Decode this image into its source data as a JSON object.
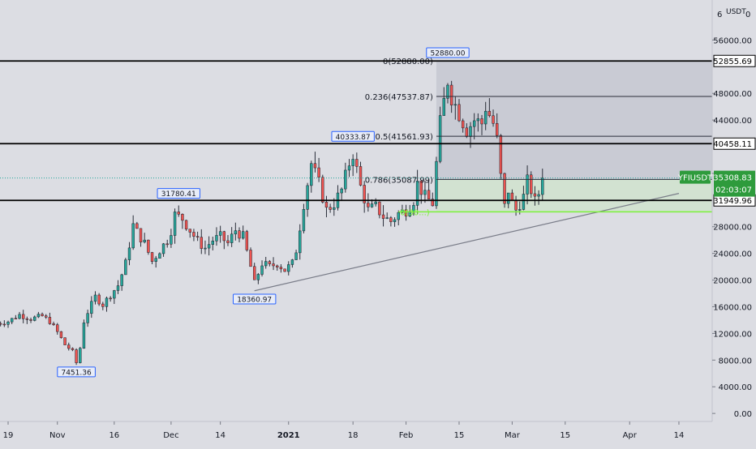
{
  "colors": {
    "background": "#dcdde3",
    "up": "#26a69a",
    "down": "#ef5350",
    "tag_up": "#2e9b3c",
    "level_line": "#000000",
    "fib_zone": "#b9bcc9",
    "green_zone": "#cfe3cc",
    "green_line": "#7cf03a",
    "trendline": "#7a7d89",
    "label_blue": "#2962ff"
  },
  "ui": {
    "price_axis_unit": "USDT",
    "price_axis_top_tick": "6",
    "price_axis_top_value": "0"
  },
  "chart_data": {
    "type": "candlestick",
    "title": "",
    "symbol": "YFIUSDT",
    "xlabel": "",
    "ylabel": "",
    "ylim": [
      -1200,
      62000
    ],
    "x_range": [
      "2020-10-19",
      "2021-04-20"
    ],
    "grid": false,
    "x_tick_labels": [
      {
        "date": "2020-10-19",
        "label": "19"
      },
      {
        "date": "2020-11-01",
        "label": "Nov"
      },
      {
        "date": "2020-11-16",
        "label": "16"
      },
      {
        "date": "2020-12-01",
        "label": "Dec"
      },
      {
        "date": "2020-12-14",
        "label": "14"
      },
      {
        "date": "2021-01-01",
        "label": "2021"
      },
      {
        "date": "2021-01-18",
        "label": "18"
      },
      {
        "date": "2021-02-01",
        "label": "Feb"
      },
      {
        "date": "2021-02-15",
        "label": "15"
      },
      {
        "date": "2021-03-01",
        "label": "Mar"
      },
      {
        "date": "2021-03-15",
        "label": "15"
      },
      {
        "date": "2021-04-01",
        "label": "Apr"
      },
      {
        "date": "2021-04-14",
        "label": "14"
      }
    ],
    "y_tick_labels": [
      "56000.00",
      "48000.00",
      "44000.00",
      "36000.00",
      "28000.00",
      "24000.00",
      "20000.00",
      "16000.00",
      "12000.00",
      "8000.00",
      "4000.00",
      "0.00"
    ],
    "y_tick_values": [
      56000,
      48000,
      44000,
      36000,
      28000,
      24000,
      20000,
      16000,
      12000,
      8000,
      4000,
      0
    ],
    "close_path": [
      {
        "date": "2020-10-16",
        "price": 13500
      },
      {
        "date": "2020-10-19",
        "price": 13800
      },
      {
        "date": "2020-10-22",
        "price": 14800
      },
      {
        "date": "2020-10-25",
        "price": 14200
      },
      {
        "date": "2020-10-28",
        "price": 14600
      },
      {
        "date": "2020-10-30",
        "price": 13800
      },
      {
        "date": "2020-11-01",
        "price": 12200
      },
      {
        "date": "2020-11-03",
        "price": 10300
      },
      {
        "date": "2020-11-05",
        "price": 9300
      },
      {
        "date": "2020-11-06",
        "price": 7600
      },
      {
        "date": "2020-11-07",
        "price": 9800
      },
      {
        "date": "2020-11-08",
        "price": 13800
      },
      {
        "date": "2020-11-09",
        "price": 15200
      },
      {
        "date": "2020-11-11",
        "price": 17500
      },
      {
        "date": "2020-11-13",
        "price": 16300
      },
      {
        "date": "2020-11-15",
        "price": 17800
      },
      {
        "date": "2020-11-17",
        "price": 19200
      },
      {
        "date": "2020-11-19",
        "price": 22500
      },
      {
        "date": "2020-11-21",
        "price": 28200
      },
      {
        "date": "2020-11-22",
        "price": 27200
      },
      {
        "date": "2020-11-24",
        "price": 25500
      },
      {
        "date": "2020-11-26",
        "price": 22800
      },
      {
        "date": "2020-11-28",
        "price": 24500
      },
      {
        "date": "2020-11-30",
        "price": 26000
      },
      {
        "date": "2020-12-01",
        "price": 27500
      },
      {
        "date": "2020-12-02",
        "price": 29800
      },
      {
        "date": "2020-12-04",
        "price": 29200
      },
      {
        "date": "2020-12-06",
        "price": 27500
      },
      {
        "date": "2020-12-08",
        "price": 25800
      },
      {
        "date": "2020-12-10",
        "price": 24800
      },
      {
        "date": "2020-12-12",
        "price": 26000
      },
      {
        "date": "2020-12-14",
        "price": 26500
      },
      {
        "date": "2020-12-16",
        "price": 25500
      },
      {
        "date": "2020-12-18",
        "price": 27500
      },
      {
        "date": "2020-12-20",
        "price": 26500
      },
      {
        "date": "2020-12-22",
        "price": 22000
      },
      {
        "date": "2020-12-23",
        "price": 19500
      },
      {
        "date": "2020-12-25",
        "price": 22500
      },
      {
        "date": "2020-12-27",
        "price": 22000
      },
      {
        "date": "2020-12-29",
        "price": 22500
      },
      {
        "date": "2020-12-31",
        "price": 21500
      },
      {
        "date": "2021-01-02",
        "price": 22500
      },
      {
        "date": "2021-01-03",
        "price": 24500
      },
      {
        "date": "2021-01-05",
        "price": 31500
      },
      {
        "date": "2021-01-07",
        "price": 37500
      },
      {
        "date": "2021-01-09",
        "price": 34500
      },
      {
        "date": "2021-01-11",
        "price": 30500
      },
      {
        "date": "2021-01-13",
        "price": 31500
      },
      {
        "date": "2021-01-15",
        "price": 33500
      },
      {
        "date": "2021-01-17",
        "price": 37500
      },
      {
        "date": "2021-01-18",
        "price": 39000
      },
      {
        "date": "2021-01-20",
        "price": 34000
      },
      {
        "date": "2021-01-22",
        "price": 30500
      },
      {
        "date": "2021-01-24",
        "price": 31000
      },
      {
        "date": "2021-01-26",
        "price": 29500
      },
      {
        "date": "2021-01-28",
        "price": 28800
      },
      {
        "date": "2021-01-30",
        "price": 30000
      },
      {
        "date": "2021-02-01",
        "price": 30500
      },
      {
        "date": "2021-02-03",
        "price": 32000
      },
      {
        "date": "2021-02-04",
        "price": 34500
      },
      {
        "date": "2021-02-06",
        "price": 32500
      },
      {
        "date": "2021-02-08",
        "price": 31500
      },
      {
        "date": "2021-02-09",
        "price": 37500
      },
      {
        "date": "2021-02-10",
        "price": 43500
      },
      {
        "date": "2021-02-12",
        "price": 50000
      },
      {
        "date": "2021-02-13",
        "price": 47500
      },
      {
        "date": "2021-02-15",
        "price": 45000
      },
      {
        "date": "2021-02-17",
        "price": 42500
      },
      {
        "date": "2021-02-19",
        "price": 44000
      },
      {
        "date": "2021-02-21",
        "price": 43500
      },
      {
        "date": "2021-02-22",
        "price": 46000
      },
      {
        "date": "2021-02-24",
        "price": 43500
      },
      {
        "date": "2021-02-25",
        "price": 41000
      },
      {
        "date": "2021-02-26",
        "price": 35500
      },
      {
        "date": "2021-02-27",
        "price": 31000
      },
      {
        "date": "2021-02-28",
        "price": 33500
      },
      {
        "date": "2021-03-01",
        "price": 31500
      },
      {
        "date": "2021-03-02",
        "price": 30500
      },
      {
        "date": "2021-03-04",
        "price": 32500
      },
      {
        "date": "2021-03-05",
        "price": 34800
      },
      {
        "date": "2021-03-06",
        "price": 33500
      },
      {
        "date": "2021-03-07",
        "price": 31800
      },
      {
        "date": "2021-03-08",
        "price": 33000
      },
      {
        "date": "2021-03-09",
        "price": 35300
      }
    ],
    "horizontal_levels": [
      52855.69,
      40458.11,
      31949.96
    ],
    "price_axis_labels": [
      {
        "price": 52855.69,
        "text": "52855.69"
      },
      {
        "price": 40458.11,
        "text": "40458.11"
      },
      {
        "price": 31949.96,
        "text": "31949.96"
      }
    ],
    "current_price": {
      "symbol": "YFIUSDT",
      "price": 35308.83,
      "text": "35308.83",
      "countdown": "02:03:07"
    },
    "fibonacci": {
      "start_date": "2021-02-09",
      "end_date": "2021-04-20",
      "high": 52880.0,
      "levels": [
        {
          "ratio": 0,
          "price": 52880.0,
          "text": "0(52880.00)"
        },
        {
          "ratio": 0.236,
          "price": 47537.87,
          "text": "0.236(47537.87)"
        },
        {
          "ratio": 0.5,
          "price": 41561.93,
          "text": "0.5(41561.93)"
        },
        {
          "ratio": 0.786,
          "price": 35087.99,
          "text": "0.786(35087.99)"
        }
      ],
      "green_line_price": 30230,
      "green_line_start": "2021-01-30",
      "partial_label": "0(30...)"
    },
    "trendline": {
      "from": {
        "date": "2020-12-23",
        "price": 18400
      },
      "to": {
        "date": "2021-04-14",
        "price": 33000
      }
    },
    "annotations": [
      {
        "date": "2020-11-06",
        "price": 7451.36,
        "text": "7451.36",
        "position": "below"
      },
      {
        "date": "2020-12-03",
        "price": 31780.41,
        "text": "31780.41",
        "position": "above"
      },
      {
        "date": "2020-12-23",
        "price": 18360.97,
        "text": "18360.97",
        "position": "below"
      },
      {
        "date": "2021-01-18",
        "price": 40333.87,
        "text": "40333.87",
        "position": "above"
      },
      {
        "date": "2021-02-12",
        "price": 52880.0,
        "text": "52880.00",
        "position": "above"
      }
    ]
  }
}
